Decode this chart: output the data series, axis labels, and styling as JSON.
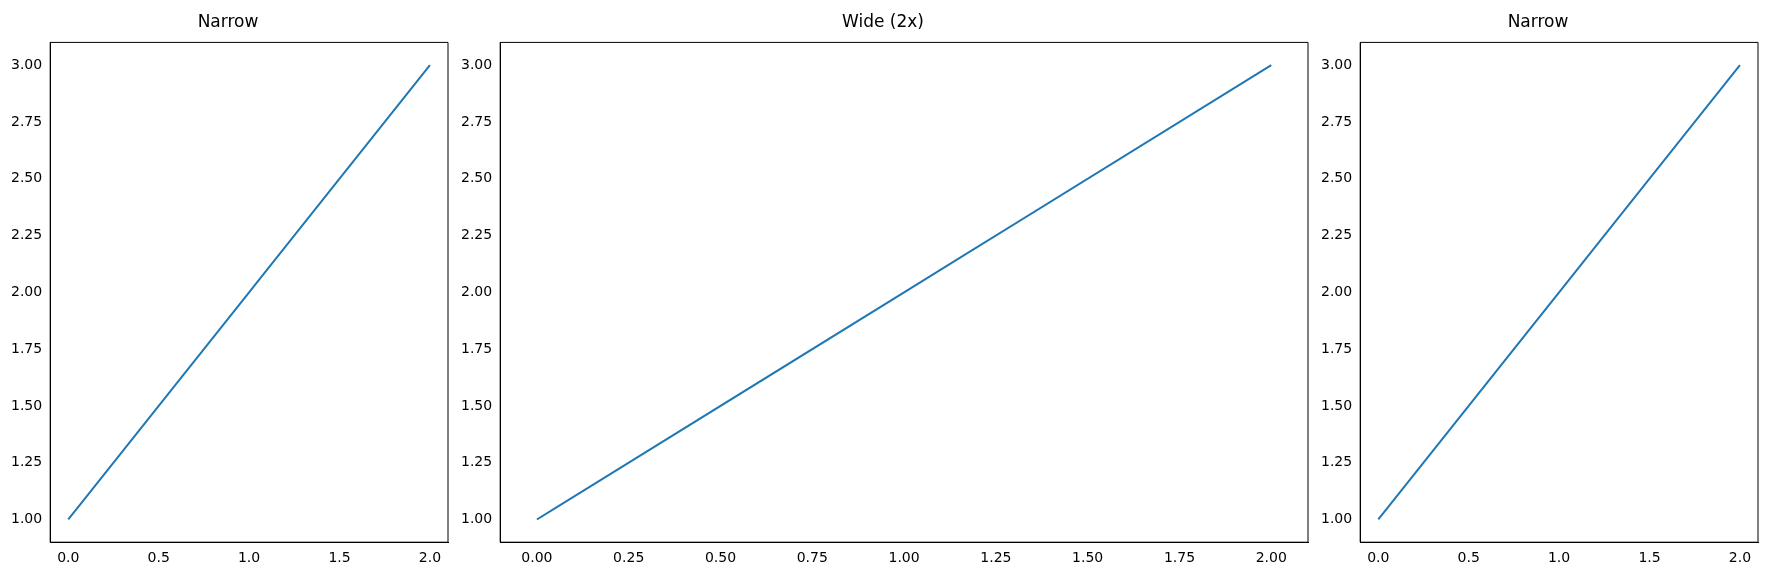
{
  "chart_data": [
    {
      "type": "line",
      "title": "Narrow",
      "x": [
        0,
        1,
        2
      ],
      "series": [
        {
          "color": "#1f77b4",
          "values": [
            1,
            2,
            3
          ]
        }
      ],
      "xlim": [
        -0.1,
        2.1
      ],
      "ylim": [
        0.9,
        3.1
      ],
      "xticks": [
        {
          "value": 0,
          "label": "0.0"
        },
        0.5,
        {
          "value": 1,
          "label": "1.0"
        },
        1.5,
        {
          "value": 2,
          "label": "2.0"
        }
      ],
      "yticks": [
        {
          "value": 1,
          "label": "1.00"
        },
        1.25,
        {
          "value": 1.5,
          "label": "1.50"
        },
        1.75,
        {
          "value": 2,
          "label": "2.00"
        },
        2.25,
        {
          "value": 2.5,
          "label": "2.50"
        },
        2.75,
        {
          "value": 3,
          "label": "3.00"
        }
      ]
    },
    {
      "type": "line",
      "title": "Wide (2x)",
      "x": [
        0,
        1,
        2
      ],
      "series": [
        {
          "color": "#1f77b4",
          "values": [
            1,
            2,
            3
          ]
        }
      ],
      "xlim": [
        -0.1,
        2.1
      ],
      "ylim": [
        0.9,
        3.1
      ],
      "xticks": [
        {
          "value": 0,
          "label": "0.00"
        },
        0.25,
        {
          "value": 0.5,
          "label": "0.50"
        },
        0.75,
        {
          "value": 1,
          "label": "1.00"
        },
        1.25,
        {
          "value": 1.5,
          "label": "1.50"
        },
        1.75,
        {
          "value": 2,
          "label": "2.00"
        }
      ],
      "yticks": [
        {
          "value": 1,
          "label": "1.00"
        },
        1.25,
        {
          "value": 1.5,
          "label": "1.50"
        },
        1.75,
        {
          "value": 2,
          "label": "2.00"
        },
        2.25,
        {
          "value": 2.5,
          "label": "2.50"
        },
        2.75,
        {
          "value": 3,
          "label": "3.00"
        }
      ]
    },
    {
      "type": "line",
      "title": "Narrow",
      "x": [
        0,
        1,
        2
      ],
      "series": [
        {
          "color": "#1f77b4",
          "values": [
            1,
            2,
            3
          ]
        }
      ],
      "xlim": [
        -0.1,
        2.1
      ],
      "ylim": [
        0.9,
        3.1
      ],
      "xticks": [
        {
          "value": 0,
          "label": "0.0"
        },
        0.5,
        {
          "value": 1,
          "label": "1.0"
        },
        1.5,
        {
          "value": 2,
          "label": "2.0"
        }
      ],
      "yticks": [
        {
          "value": 1,
          "label": "1.00"
        },
        1.25,
        {
          "value": 1.5,
          "label": "1.50"
        },
        1.75,
        {
          "value": 2,
          "label": "2.00"
        },
        2.25,
        {
          "value": 2.5,
          "label": "2.50"
        },
        2.75,
        {
          "value": 3,
          "label": "3.00"
        }
      ]
    }
  ]
}
